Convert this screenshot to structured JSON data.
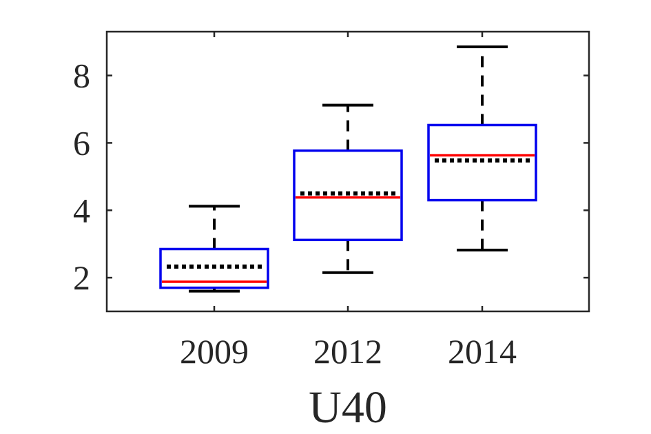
{
  "chart_data": {
    "type": "box",
    "title": "",
    "xlabel": "U40",
    "ylabel": "",
    "categories": [
      "2009",
      "2012",
      "2014"
    ],
    "ylim": [
      1,
      9.3
    ],
    "yticks": [
      2,
      4,
      6,
      8
    ],
    "grid": false,
    "boxes": [
      {
        "category": "2009",
        "whisker_low": 1.6,
        "q1": 1.7,
        "median": 1.88,
        "mean": 2.33,
        "q3": 2.85,
        "whisker_high": 4.12
      },
      {
        "category": "2012",
        "whisker_low": 2.15,
        "q1": 3.12,
        "median": 4.38,
        "mean": 4.5,
        "q3": 5.77,
        "whisker_high": 7.12
      },
      {
        "category": "2014",
        "whisker_low": 2.82,
        "q1": 4.3,
        "median": 5.63,
        "mean": 5.48,
        "q3": 6.53,
        "whisker_high": 8.85
      }
    ],
    "colors": {
      "box": "#0000ee",
      "median": "#ff0000",
      "mean": "#000000",
      "whisker": "#000000",
      "axis": "#262626"
    }
  }
}
